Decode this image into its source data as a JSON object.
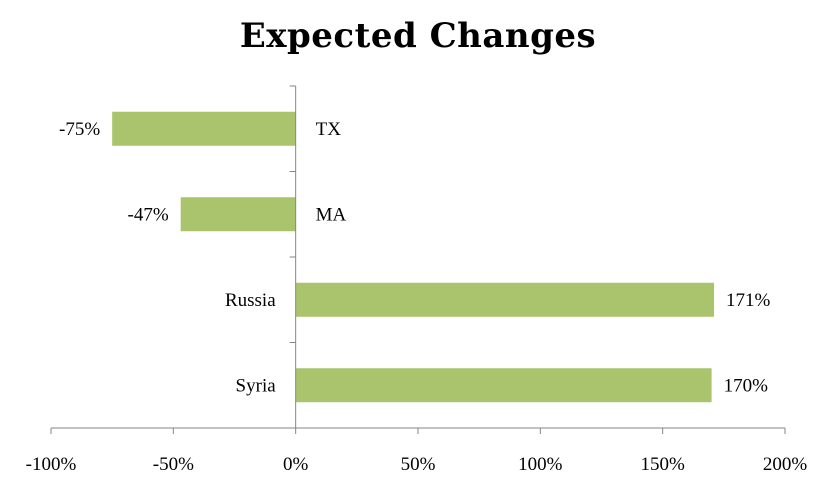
{
  "chart_data": {
    "type": "bar",
    "orientation": "horizontal",
    "title": "Expected Changes",
    "xlabel": "",
    "ylabel": "",
    "categories": [
      "TX",
      "MA",
      "Russia",
      "Syria"
    ],
    "values": [
      -75,
      -47,
      171,
      170
    ],
    "value_labels": [
      "-75%",
      "-47%",
      "171%",
      "170%"
    ],
    "xlim": [
      -100,
      200
    ],
    "x_ticks": [
      -100,
      -50,
      0,
      50,
      100,
      150,
      200
    ],
    "x_tick_labels": [
      "-100%",
      "-50%",
      "0%",
      "50%",
      "100%",
      "150%",
      "200%"
    ],
    "grid": false,
    "legend": "none",
    "bar_color": "#a9c46c"
  }
}
